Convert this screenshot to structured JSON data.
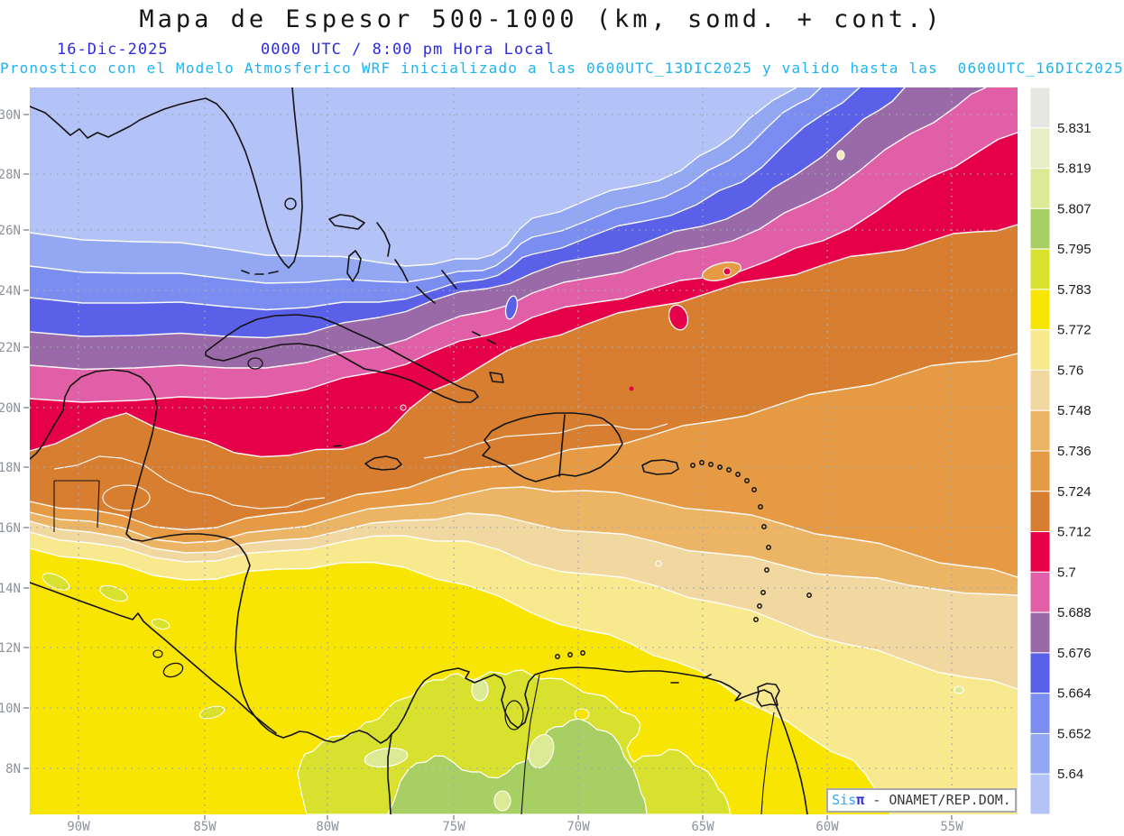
{
  "header": {
    "title": "Mapa de Espesor 500-1000 (km, somd. + cont.)",
    "date": "16-Dic-2025",
    "valid_time": "0000 UTC / 8:00 pm Hora Local",
    "forecast_note": "Pronostico con el Modelo Atmosferico WRF inicializado a las 0600UTC_13DIC2025 y valido hasta las  0600UTC_16DIC2025"
  },
  "axes": {
    "lat_labels": [
      "30N",
      "28N",
      "26N",
      "24N",
      "22N",
      "20N",
      "18N",
      "16N",
      "14N",
      "12N",
      "10N",
      "8N"
    ],
    "lon_labels": [
      "90W",
      "85W",
      "80W",
      "75W",
      "70W",
      "65W",
      "60W",
      "55W"
    ]
  },
  "colorbar": {
    "labels": [
      "5.831",
      "5.819",
      "5.807",
      "5.795",
      "5.783",
      "5.772",
      "5.76",
      "5.748",
      "5.736",
      "5.724",
      "5.712",
      "5.7",
      "5.688",
      "5.676",
      "5.664",
      "5.652",
      "5.64"
    ],
    "colors": [
      "#e8e6e3",
      "#e7efc6",
      "#dcea96",
      "#a7cf63",
      "#d8e12e",
      "#f8e502",
      "#f8e88e",
      "#f1d7a0",
      "#ecb566",
      "#e69a44",
      "#d87e31",
      "#e50049",
      "#e05fa6",
      "#9a69a7",
      "#5a60e8",
      "#7b8df0",
      "#93a7f3",
      "#b3c2f7"
    ]
  },
  "attribution": {
    "prefix": "Sis",
    "pi": "π",
    "suffix": " - ONAMET/REP.DOM."
  }
}
